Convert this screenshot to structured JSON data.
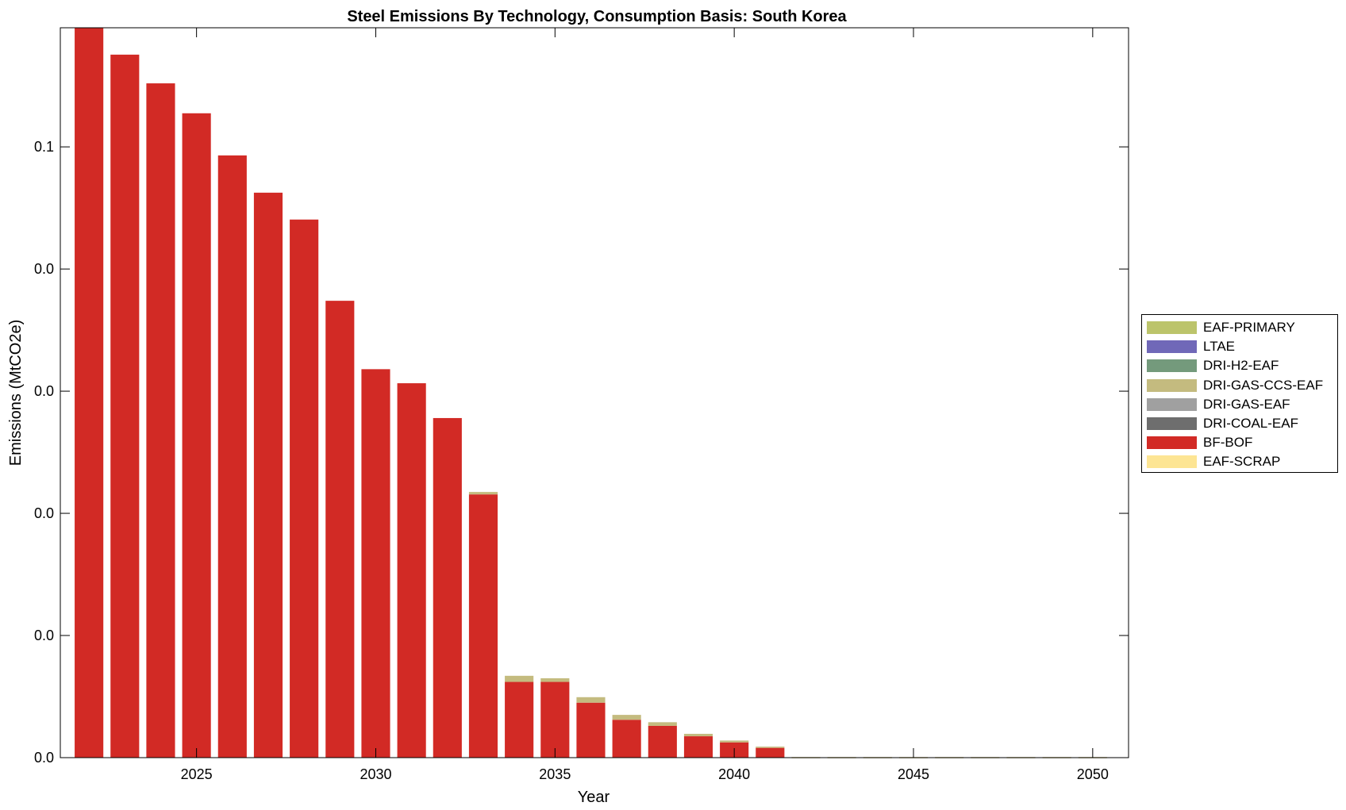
{
  "chart_data": {
    "type": "bar",
    "stacked": true,
    "title": "Steel Emissions By Technology, Consumption Basis: South Korea",
    "xlabel": "Year",
    "ylabel": "Emissions (MtCO2e)",
    "x_tick_labels": [
      "2025",
      "2030",
      "2035",
      "2040",
      "2045",
      "2050"
    ],
    "x_ticks": [
      2025,
      2030,
      2035,
      2040,
      2045,
      2050
    ],
    "y_tick_labels": [
      "0.0",
      "0.0",
      "0.0",
      "0.0",
      "0.0",
      "0.1"
    ],
    "y_ticks": [
      0,
      0.02,
      0.04,
      0.06,
      0.08,
      0.1
    ],
    "xlim": [
      2021.2,
      2051.0
    ],
    "ylim": [
      0,
      0.1195
    ],
    "grid": false,
    "legend_position": "right",
    "categories": [
      2022,
      2023,
      2024,
      2025,
      2026,
      2027,
      2028,
      2029,
      2030,
      2031,
      2032,
      2033,
      2034,
      2035,
      2036,
      2037,
      2038,
      2039,
      2040,
      2041,
      2042,
      2043,
      2044,
      2045,
      2046,
      2047,
      2048,
      2049,
      2050
    ],
    "series": [
      {
        "name": "EAF-PRIMARY",
        "color": "#bcc46b",
        "values": [
          0,
          0,
          0,
          0,
          0,
          0,
          0,
          0,
          0,
          0,
          0,
          0,
          0,
          0,
          0,
          0,
          0,
          0,
          0,
          0,
          0,
          0,
          0,
          0,
          0,
          0,
          0,
          0,
          0
        ]
      },
      {
        "name": "LTAE",
        "color": "#7068b8",
        "values": [
          0,
          0,
          0,
          0,
          0,
          0,
          0,
          0,
          0,
          0,
          0,
          0,
          0,
          0,
          0,
          0,
          0,
          0,
          0,
          0,
          0,
          0,
          0,
          0,
          0,
          0,
          0,
          0,
          0
        ]
      },
      {
        "name": "DRI-H2-EAF",
        "color": "#749a7c",
        "values": [
          0,
          0,
          0,
          0,
          0,
          0,
          0,
          0,
          0,
          0,
          0,
          0,
          0,
          0,
          0,
          0,
          0,
          0,
          0,
          0,
          0,
          0,
          0,
          0,
          0,
          0,
          0,
          0,
          0
        ]
      },
      {
        "name": "DRI-GAS-CCS-EAF",
        "color": "#c4bb7f",
        "values": [
          0,
          0,
          0,
          0,
          0,
          0,
          0,
          0,
          0,
          0,
          0,
          0.0004,
          0.001,
          0.0006,
          0.0009,
          0.0008,
          0.0006,
          0.0004,
          0.0003,
          0.0002,
          0.0001,
          0.0001,
          0.0001,
          0.0001,
          0.0001,
          0.0001,
          0.0001,
          0.0001,
          0.0001
        ]
      },
      {
        "name": "DRI-GAS-EAF",
        "color": "#a0a0a0",
        "values": [
          0,
          0,
          0,
          0,
          0,
          0,
          0,
          0,
          0,
          0,
          0,
          0,
          0,
          0,
          0,
          0,
          0,
          0,
          0,
          0,
          0,
          0,
          0,
          0,
          0,
          0,
          0,
          0,
          0
        ]
      },
      {
        "name": "DRI-COAL-EAF",
        "color": "#6e6e6e",
        "values": [
          0,
          0,
          0,
          0,
          0,
          0,
          0,
          0,
          0,
          0,
          0,
          0,
          0,
          0,
          0,
          0,
          0,
          0,
          0,
          0,
          0,
          0,
          0,
          0,
          0,
          0,
          0,
          0,
          0
        ]
      },
      {
        "name": "BF-BOF",
        "color": "#d22a25",
        "values": [
          0.1195,
          0.1151,
          0.1104,
          0.1055,
          0.0986,
          0.0925,
          0.0881,
          0.0748,
          0.0636,
          0.0613,
          0.0556,
          0.0431,
          0.0124,
          0.0124,
          0.009,
          0.0062,
          0.0052,
          0.0035,
          0.0025,
          0.0016,
          0,
          0,
          0,
          0,
          0,
          0,
          0,
          0,
          0
        ]
      },
      {
        "name": "EAF-SCRAP",
        "color": "#fde594",
        "values": [
          0,
          0,
          0,
          0,
          0,
          0,
          0,
          0,
          0,
          0,
          0,
          0,
          0,
          0,
          0,
          0,
          0,
          0,
          0,
          0,
          0,
          0,
          0,
          0,
          0,
          0,
          0,
          0,
          0
        ]
      }
    ]
  }
}
